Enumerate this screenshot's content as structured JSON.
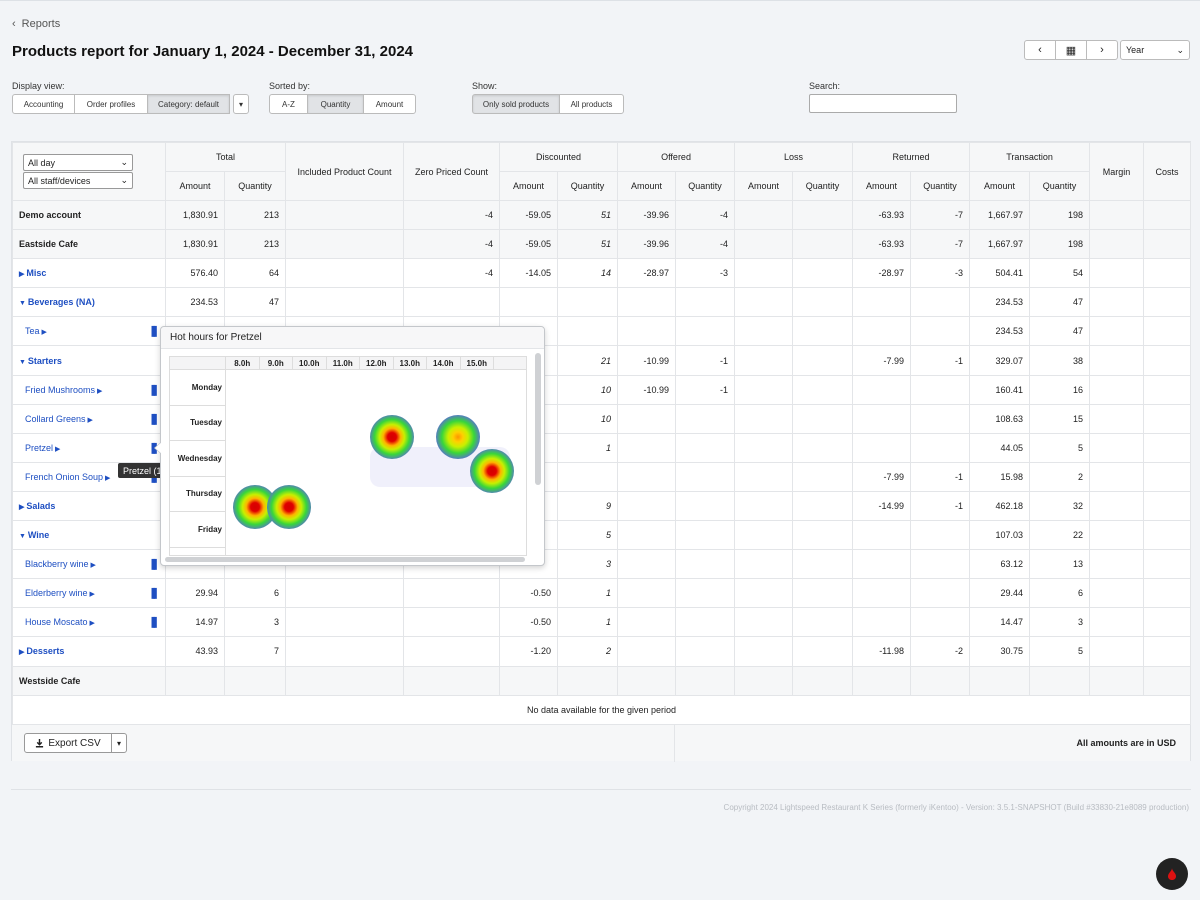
{
  "back_label": "Reports",
  "title": "Products report for January 1, 2024 - December 31, 2024",
  "date_nav": {
    "prev": "‹",
    "calendar": "▦",
    "next": "›",
    "period": "Year",
    "caret": "⌄"
  },
  "display_view": {
    "label": "Display view:",
    "options": [
      "Accounting",
      "Order profiles",
      "Category: default"
    ],
    "active": "Category: default",
    "caret": "▾"
  },
  "sorted_by": {
    "label": "Sorted by:",
    "options": [
      "A-Z",
      "Quantity",
      "Amount"
    ],
    "active": "Quantity"
  },
  "show": {
    "label": "Show:",
    "options": [
      "Only sold products",
      "All products"
    ],
    "active": "Only sold products"
  },
  "search": {
    "label": "Search:",
    "placeholder": ""
  },
  "filters": {
    "time": "All day",
    "staff": "All staff/devices",
    "caret": "⌄"
  },
  "headers": {
    "total": "Total",
    "included": "Included Product Count",
    "zero": "Zero Priced Count",
    "discounted": "Discounted",
    "offered": "Offered",
    "loss": "Loss",
    "returned": "Returned",
    "transaction": "Transaction",
    "margin": "Margin",
    "costs": "Costs",
    "amount": "Amount",
    "quantity": "Quantity"
  },
  "rows": [
    {
      "name": "Demo account",
      "type": "account",
      "total_amt": "1,830.91",
      "total_qty": "213",
      "included": "",
      "zero": "-4",
      "disc_amt": "-59.05",
      "disc_qty": "51",
      "off_amt": "-39.96",
      "off_qty": "-4",
      "loss_amt": "",
      "loss_qty": "",
      "ret_amt": "-63.93",
      "ret_qty": "-7",
      "tr_amt": "1,667.97",
      "tr_qty": "198"
    },
    {
      "name": "Eastside Cafe",
      "type": "account",
      "total_amt": "1,830.91",
      "total_qty": "213",
      "included": "",
      "zero": "-4",
      "disc_amt": "-59.05",
      "disc_qty": "51",
      "off_amt": "-39.96",
      "off_qty": "-4",
      "loss_amt": "",
      "loss_qty": "",
      "ret_amt": "-63.93",
      "ret_qty": "-7",
      "tr_amt": "1,667.97",
      "tr_qty": "198"
    },
    {
      "name": "Misc",
      "type": "category",
      "expanded": false,
      "total_amt": "576.40",
      "total_qty": "64",
      "included": "",
      "zero": "-4",
      "disc_amt": "-14.05",
      "disc_qty": "14",
      "off_amt": "-28.97",
      "off_qty": "-3",
      "loss_amt": "",
      "loss_qty": "",
      "ret_amt": "-28.97",
      "ret_qty": "-3",
      "tr_amt": "504.41",
      "tr_qty": "54"
    },
    {
      "name": "Beverages (NA)",
      "type": "category",
      "expanded": true,
      "total_amt": "234.53",
      "total_qty": "47",
      "included": "",
      "zero": "",
      "disc_amt": "",
      "disc_qty": "",
      "off_amt": "",
      "off_qty": "",
      "loss_amt": "",
      "loss_qty": "",
      "ret_amt": "",
      "ret_qty": "",
      "tr_amt": "234.53",
      "tr_qty": "47"
    },
    {
      "name": "Tea",
      "type": "product",
      "total_amt": "",
      "total_qty": "",
      "included": "",
      "zero": "",
      "disc_amt": "",
      "disc_qty": "",
      "off_amt": "",
      "off_qty": "",
      "loss_amt": "",
      "loss_qty": "",
      "ret_amt": "",
      "ret_qty": "",
      "tr_amt": "234.53",
      "tr_qty": "47"
    },
    {
      "name": "Starters",
      "type": "category",
      "expanded": true,
      "total_amt": "",
      "total_qty": "",
      "included": "",
      "zero": "",
      "disc_amt": "",
      "disc_qty": "21",
      "off_amt": "-10.99",
      "off_qty": "-1",
      "loss_amt": "",
      "loss_qty": "",
      "ret_amt": "-7.99",
      "ret_qty": "-1",
      "tr_amt": "329.07",
      "tr_qty": "38"
    },
    {
      "name": "Fried Mushrooms",
      "type": "product",
      "total_amt": "",
      "total_qty": "",
      "included": "",
      "zero": "",
      "disc_amt": "",
      "disc_qty": "10",
      "off_amt": "-10.99",
      "off_qty": "-1",
      "loss_amt": "",
      "loss_qty": "",
      "ret_amt": "",
      "ret_qty": "",
      "tr_amt": "160.41",
      "tr_qty": "16"
    },
    {
      "name": "Collard Greens",
      "type": "product",
      "total_amt": "",
      "total_qty": "",
      "included": "",
      "zero": "",
      "disc_amt": "",
      "disc_qty": "10",
      "off_amt": "",
      "off_qty": "",
      "loss_amt": "",
      "loss_qty": "",
      "ret_amt": "",
      "ret_qty": "",
      "tr_amt": "108.63",
      "tr_qty": "15"
    },
    {
      "name": "Pretzel",
      "type": "product",
      "total_amt": "",
      "total_qty": "",
      "included": "",
      "zero": "",
      "disc_amt": "",
      "disc_qty": "1",
      "off_amt": "",
      "off_qty": "",
      "loss_amt": "",
      "loss_qty": "",
      "ret_amt": "",
      "ret_qty": "",
      "tr_amt": "44.05",
      "tr_qty": "5"
    },
    {
      "name": "French Onion Soup",
      "type": "product",
      "total_amt": "",
      "total_qty": "",
      "included": "",
      "zero": "",
      "disc_amt": "",
      "disc_qty": "",
      "off_amt": "",
      "off_qty": "",
      "loss_amt": "",
      "loss_qty": "",
      "ret_amt": "-7.99",
      "ret_qty": "-1",
      "tr_amt": "15.98",
      "tr_qty": "2"
    },
    {
      "name": "Salads",
      "type": "category",
      "expanded": false,
      "total_amt": "",
      "total_qty": "",
      "included": "",
      "zero": "",
      "disc_amt": "",
      "disc_qty": "9",
      "off_amt": "",
      "off_qty": "",
      "loss_amt": "",
      "loss_qty": "",
      "ret_amt": "-14.99",
      "ret_qty": "-1",
      "tr_amt": "462.18",
      "tr_qty": "32"
    },
    {
      "name": "Wine",
      "type": "category",
      "expanded": true,
      "total_amt": "",
      "total_qty": "",
      "included": "",
      "zero": "",
      "disc_amt": "",
      "disc_qty": "5",
      "off_amt": "",
      "off_qty": "",
      "loss_amt": "",
      "loss_qty": "",
      "ret_amt": "",
      "ret_qty": "",
      "tr_amt": "107.03",
      "tr_qty": "22"
    },
    {
      "name": "Blackberry wine",
      "type": "product",
      "total_amt": "",
      "total_qty": "",
      "included": "",
      "zero": "",
      "disc_amt": "",
      "disc_qty": "3",
      "off_amt": "",
      "off_qty": "",
      "loss_amt": "",
      "loss_qty": "",
      "ret_amt": "",
      "ret_qty": "",
      "tr_amt": "63.12",
      "tr_qty": "13"
    },
    {
      "name": "Elderberry wine",
      "type": "product",
      "total_amt": "29.94",
      "total_qty": "6",
      "included": "",
      "zero": "",
      "disc_amt": "-0.50",
      "disc_qty": "1",
      "off_amt": "",
      "off_qty": "",
      "loss_amt": "",
      "loss_qty": "",
      "ret_amt": "",
      "ret_qty": "",
      "tr_amt": "29.44",
      "tr_qty": "6"
    },
    {
      "name": "House Moscato",
      "type": "product",
      "total_amt": "14.97",
      "total_qty": "3",
      "included": "",
      "zero": "",
      "disc_amt": "-0.50",
      "disc_qty": "1",
      "off_amt": "",
      "off_qty": "",
      "loss_amt": "",
      "loss_qty": "",
      "ret_amt": "",
      "ret_qty": "",
      "tr_amt": "14.47",
      "tr_qty": "3"
    },
    {
      "name": "Desserts",
      "type": "category",
      "expanded": false,
      "total_amt": "43.93",
      "total_qty": "7",
      "included": "",
      "zero": "",
      "disc_amt": "-1.20",
      "disc_qty": "2",
      "off_amt": "",
      "off_qty": "",
      "loss_amt": "",
      "loss_qty": "",
      "ret_amt": "-11.98",
      "ret_qty": "-2",
      "tr_amt": "30.75",
      "tr_qty": "5"
    },
    {
      "name": "Westside Cafe",
      "type": "account",
      "total_amt": "",
      "total_qty": "",
      "included": "",
      "zero": "",
      "disc_amt": "",
      "disc_qty": "",
      "off_amt": "",
      "off_qty": "",
      "loss_amt": "",
      "loss_qty": "",
      "ret_amt": "",
      "ret_qty": "",
      "tr_amt": "",
      "tr_qty": ""
    }
  ],
  "no_data": "No data available for the given period",
  "export": {
    "label": "Export CSV",
    "caret": "▾"
  },
  "currency_note": "All amounts are in USD",
  "copyright": "Copyright 2024 Lightspeed Restaurant K Series (formerly iKentoo) - Version: 3.5.1-SNAPSHOT (Build #33830-21e8089 production)",
  "tooltip": "Pretzel (15)",
  "popover": {
    "title": "Hot hours for Pretzel",
    "hours": [
      "8.0h",
      "9.0h",
      "10.0h",
      "11.0h",
      "12.0h",
      "13.0h",
      "14.0h",
      "15.0h"
    ],
    "days": [
      "Monday",
      "Tuesday",
      "Wednesday",
      "Thursday",
      "Friday"
    ],
    "hot_spots": [
      {
        "day": "Tuesday",
        "hour": "12.0h",
        "intensity": "high"
      },
      {
        "day": "Tuesday",
        "hour": "14.0h",
        "intensity": "medium"
      },
      {
        "day": "Wednesday",
        "hour": "15.0h",
        "intensity": "high"
      },
      {
        "day": "Thursday",
        "hour": "8.0h",
        "intensity": "high"
      },
      {
        "day": "Thursday",
        "hour": "9.0h",
        "intensity": "high"
      }
    ]
  },
  "colors": {
    "link": "#1e4fc2",
    "heat_hot": "#d40000",
    "heat_warm": "#ffb300",
    "heat_mid": "#38d63a",
    "heat_cool": "#5a6dd8"
  }
}
